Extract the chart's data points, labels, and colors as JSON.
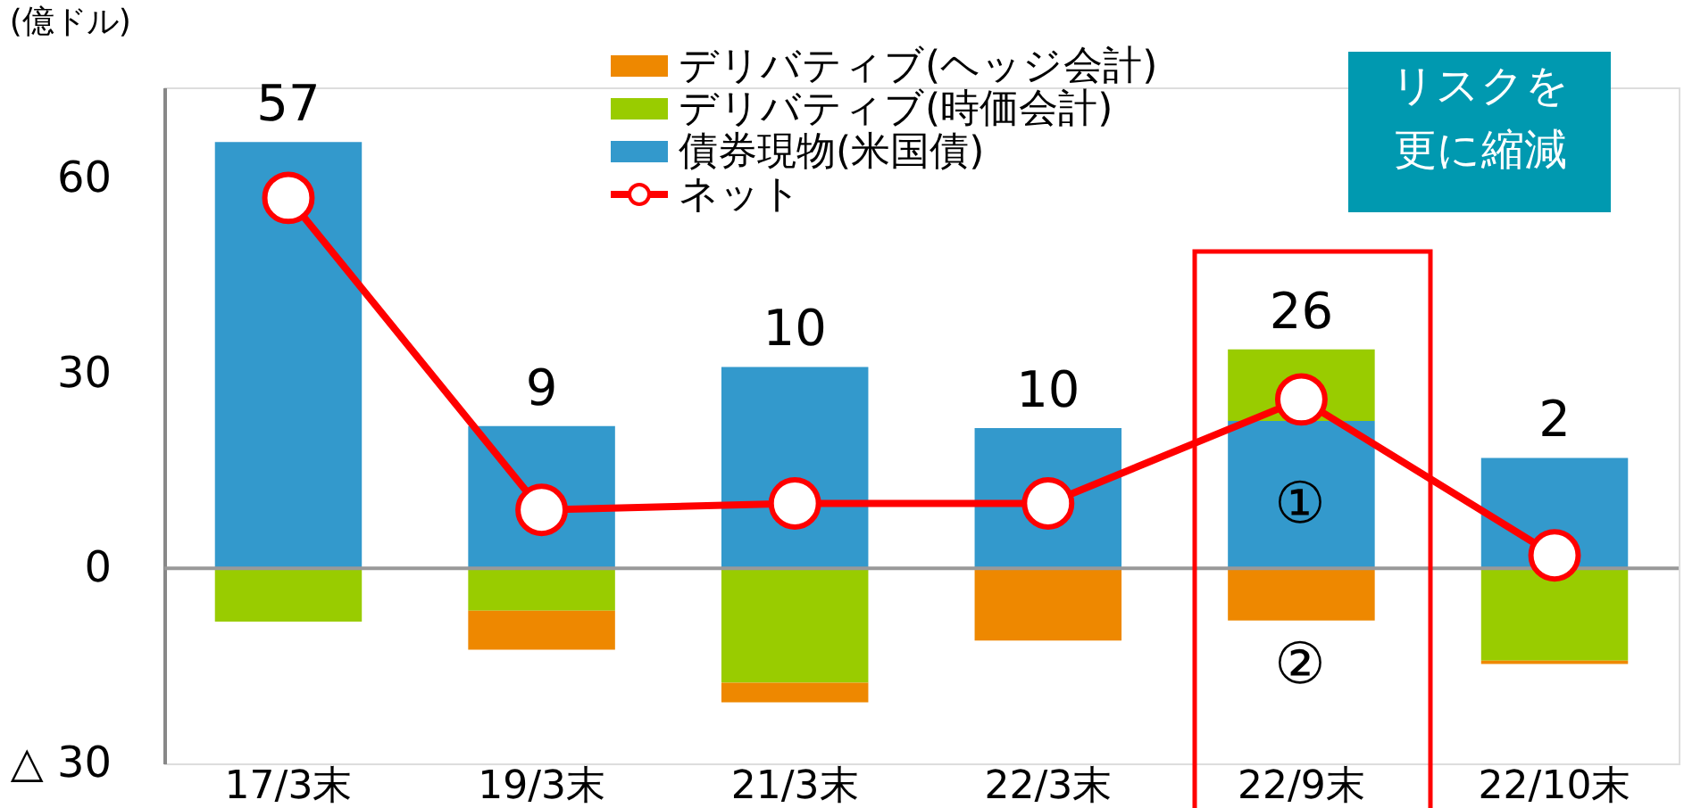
{
  "chart_data": {
    "type": "bar",
    "title": "(億ドル)",
    "stacked": true,
    "categories": [
      "17/3末",
      "19/3末",
      "21/3末",
      "22/3末",
      "22/9末",
      "22/10末"
    ],
    "series": [
      {
        "name": "債券現物(米国債)",
        "color": "#3399cc",
        "values": [
          65.6,
          21.9,
          31,
          21.6,
          22.7,
          17
        ]
      },
      {
        "name": "デリバティブ(時価会計)",
        "color": "#99cc00",
        "values": [
          -8.2,
          -6.5,
          -17.6,
          0,
          11,
          -14.2
        ]
      },
      {
        "name": "デリバティブ(ヘッジ会計)",
        "color": "#ee8800",
        "values": [
          0,
          -6,
          -3,
          -11.1,
          -8,
          -0.5
        ]
      },
      {
        "name": "ネット",
        "type": "line",
        "color": "#ff0000",
        "marker": "circle",
        "values": [
          57,
          9,
          10,
          10,
          26,
          2
        ],
        "value_labels": [
          "57",
          "9",
          "10",
          "10",
          "26",
          "2"
        ]
      }
    ],
    "ylim": [
      -30,
      74
    ],
    "yticks": [
      {
        "value": -30,
        "label": "△ 30"
      },
      0,
      30,
      60
    ],
    "grid": false,
    "legend": "top right",
    "ref_lines": [
      {
        "axis": "y",
        "value": 0,
        "color": "#999999"
      }
    ],
    "annotations": [
      "リスクを更に縮減",
      "①",
      "②"
    ]
  }
}
